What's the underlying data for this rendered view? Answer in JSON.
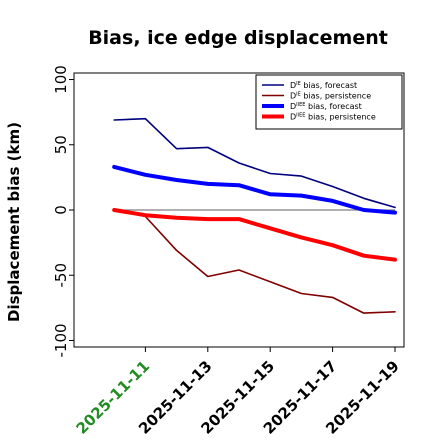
{
  "chart_data": {
    "type": "line",
    "title": "Bias, ice edge displacement",
    "ylabel": "Displacement bias (km)",
    "xlabel": "",
    "ylim": [
      -105,
      105
    ],
    "xlim": [
      "2025-11-09",
      "2025-11-19"
    ],
    "yticks": [
      -100,
      -50,
      0,
      50,
      100
    ],
    "xticks": [
      "2025-11-11",
      "2025-11-13",
      "2025-11-15",
      "2025-11-17",
      "2025-11-19"
    ],
    "xtick_colors": [
      "#228b22",
      "#000000",
      "#000000",
      "#000000",
      "#000000"
    ],
    "x": [
      "2025-11-10",
      "2025-11-11",
      "2025-11-12",
      "2025-11-13",
      "2025-11-14",
      "2025-11-15",
      "2025-11-16",
      "2025-11-17",
      "2025-11-18",
      "2025-11-19"
    ],
    "zero_line": true,
    "grid": false,
    "legend_position": "top-right",
    "series": [
      {
        "name_main": "D",
        "name_sup": "IE",
        "name_rest": " bias, forecast",
        "color": "#00007f",
        "width": "thin",
        "values": [
          69,
          70,
          47,
          48,
          36,
          28,
          26,
          18,
          9,
          2
        ]
      },
      {
        "name_main": "D",
        "name_sup": "IE",
        "name_rest": " bias, persistence",
        "color": "#7f0000",
        "width": "thin",
        "values": [
          0,
          -5,
          -31,
          -51,
          -46,
          -55,
          -64,
          -67,
          -79,
          -78
        ]
      },
      {
        "name_main": "D",
        "name_sup": "IIEE",
        "name_rest": " bias, forecast",
        "color": "#0000ff",
        "width": "thick",
        "values": [
          33,
          27,
          23,
          20,
          19,
          12,
          11,
          7,
          0,
          -2
        ]
      },
      {
        "name_main": "D",
        "name_sup": "IIEE",
        "name_rest": " bias, persistence",
        "color": "#ff0000",
        "width": "thick",
        "values": [
          0,
          -4,
          -6,
          -7,
          -7,
          -14,
          -21,
          -27,
          -35,
          -38
        ]
      }
    ]
  }
}
